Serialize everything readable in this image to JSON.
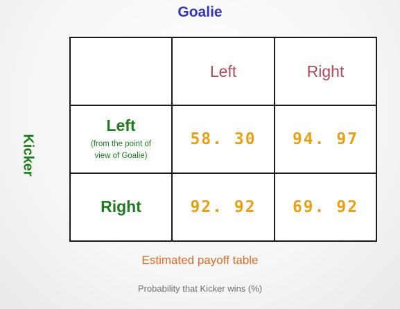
{
  "column_player": "Goalie",
  "row_player": "Kicker",
  "columns": [
    "Left",
    "Right"
  ],
  "rows": [
    {
      "label": "Left",
      "note_line1": "(from the point of",
      "note_line2": "view of Goalie)",
      "values": [
        "58. 30",
        "94. 97"
      ]
    },
    {
      "label": "Right",
      "values": [
        "92. 92",
        "69. 92"
      ]
    }
  ],
  "caption": "Estimated payoff table",
  "subcaption": "Probability that Kicker wins (%)",
  "colors": {
    "column_player": "#3535b8",
    "row_player": "#1d7a1d",
    "column_headers": "#b04a5a",
    "payoffs": "#e8a010",
    "caption": "#e06a25",
    "subcaption": "#707070"
  }
}
